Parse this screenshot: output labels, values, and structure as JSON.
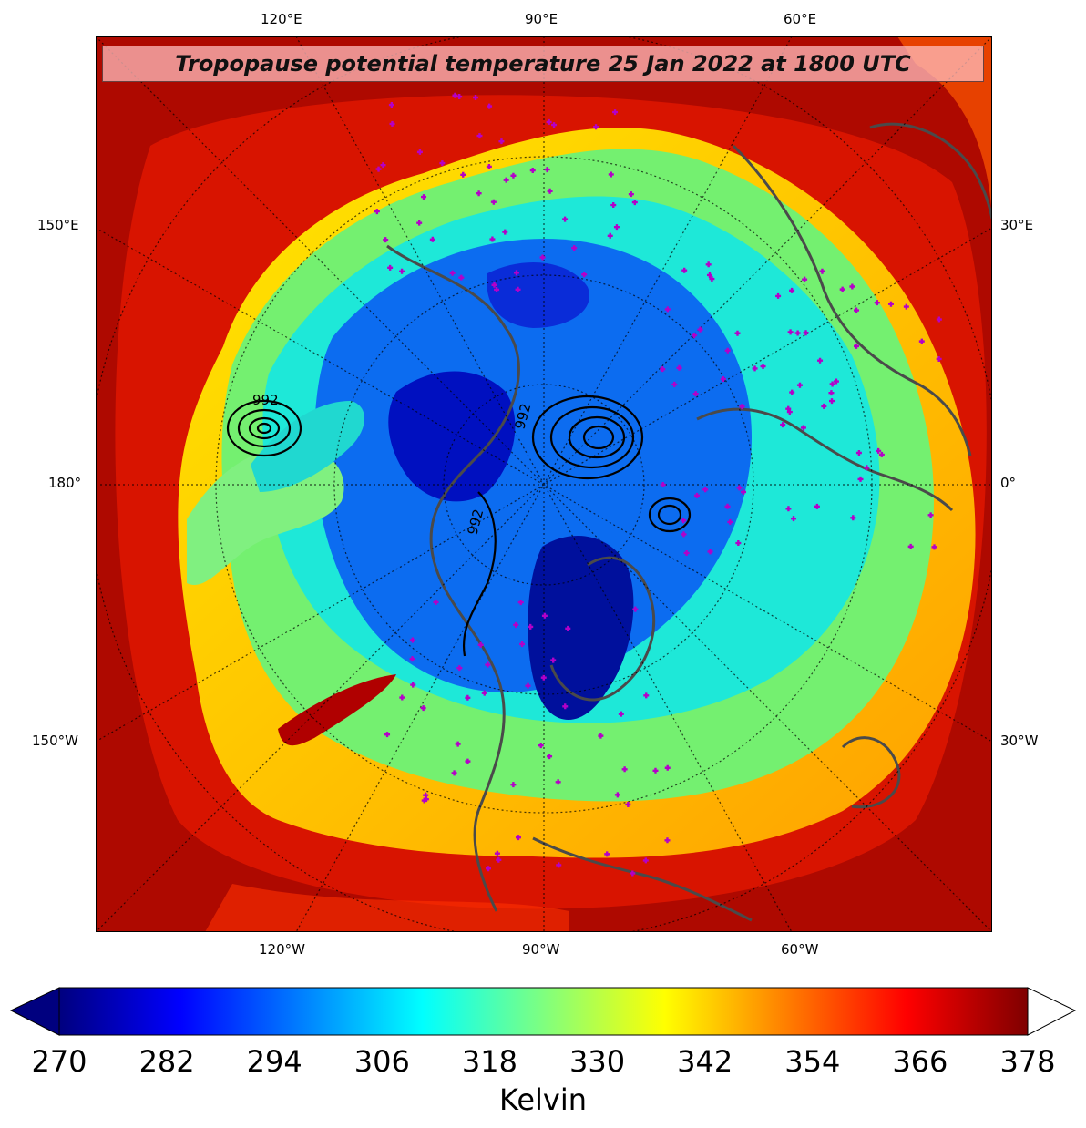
{
  "title": "Tropopause potential temperature 25 Jan 2022 at 1800 UTC",
  "longitude_labels": {
    "top": [
      "120°E",
      "90°E",
      "60°E"
    ],
    "bottom": [
      "120°W",
      "90°W",
      "60°W"
    ],
    "left": [
      "150°E",
      "180°",
      "150°W"
    ],
    "right": [
      "30°E",
      "0°",
      "30°W"
    ]
  },
  "pressure_contour_labels": [
    "992",
    "992",
    "992"
  ],
  "colorbar": {
    "ticks": [
      "270",
      "282",
      "294",
      "306",
      "318",
      "330",
      "342",
      "354",
      "366",
      "378"
    ],
    "unit": "Kelvin",
    "range": [
      270,
      378
    ],
    "colormap": [
      "#00007f",
      "#0000ff",
      "#007fff",
      "#00ffff",
      "#7fff7f",
      "#ffff00",
      "#ff7f00",
      "#ff0000",
      "#7f0000"
    ]
  },
  "colors": {
    "coastline": "#4a4a4a",
    "station_marker": "#b400c8",
    "contour": "#000000"
  }
}
